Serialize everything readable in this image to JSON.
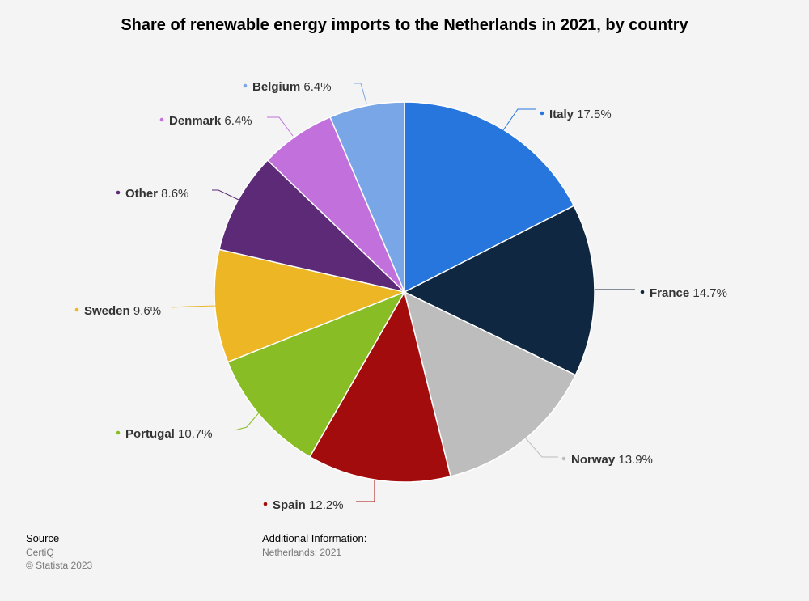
{
  "chart_data": {
    "type": "pie",
    "title": "Share of renewable energy imports to the Netherlands in 2021, by country",
    "slices": [
      {
        "label": "Italy",
        "value": 17.5,
        "display": "17.5%",
        "color": "#2776dd"
      },
      {
        "label": "France",
        "value": 14.7,
        "display": "14.7%",
        "color": "#0f2740"
      },
      {
        "label": "Norway",
        "value": 13.9,
        "display": "13.9%",
        "color": "#bdbdbd"
      },
      {
        "label": "Spain",
        "value": 12.2,
        "display": "12.2%",
        "color": "#a30c0c"
      },
      {
        "label": "Portugal",
        "value": 10.7,
        "display": "10.7%",
        "color": "#88bd25"
      },
      {
        "label": "Sweden",
        "value": 9.6,
        "display": "9.6%",
        "color": "#ecb625"
      },
      {
        "label": "Other",
        "value": 8.6,
        "display": "8.6%",
        "color": "#5c2a77"
      },
      {
        "label": "Denmark",
        "value": 6.4,
        "display": "6.4%",
        "color": "#c271dc"
      },
      {
        "label": "Belgium",
        "value": 6.4,
        "display": "6.4%",
        "color": "#79a6e6"
      }
    ]
  },
  "footer": {
    "source_heading": "Source",
    "source_name": "CertiQ",
    "copyright": "© Statista 2023",
    "additional_heading": "Additional Information:",
    "additional_text": "Netherlands; 2021"
  }
}
